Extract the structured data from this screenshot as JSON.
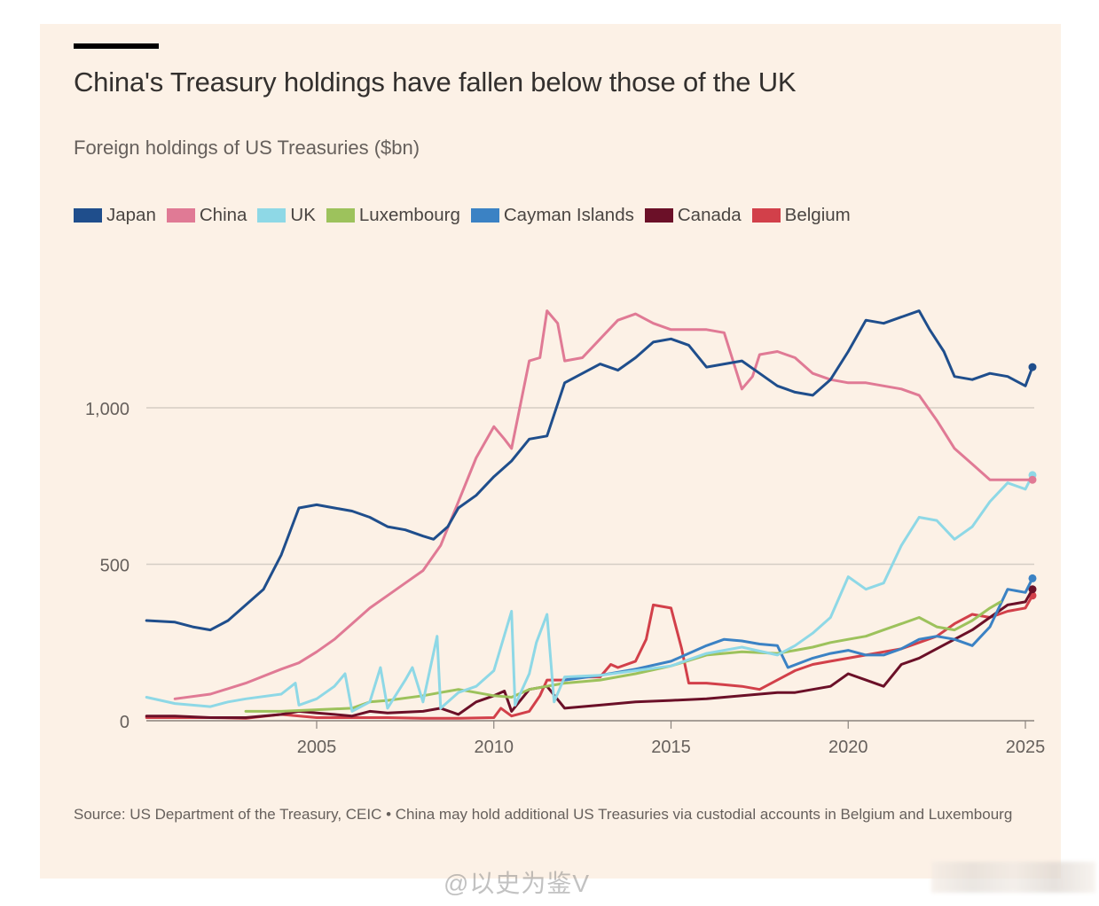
{
  "header": {
    "title": "China's Treasury holdings have fallen below those of the UK",
    "subtitle": "Foreign holdings of US Treasuries ($bn)"
  },
  "legend": [
    {
      "name": "Japan",
      "color": "#1f4e8c"
    },
    {
      "name": "China",
      "color": "#e07a95"
    },
    {
      "name": "UK",
      "color": "#8ed8e6"
    },
    {
      "name": "Luxembourg",
      "color": "#9dc25c"
    },
    {
      "name": "Cayman Islands",
      "color": "#3b82c4"
    },
    {
      "name": "Canada",
      "color": "#6b1028"
    },
    {
      "name": "Belgium",
      "color": "#d2404a"
    }
  ],
  "footer": {
    "source": "Source: US Department of the Treasury, CEIC • China may hold additional US Treasuries via custodial accounts in Belgium and Luxembourg",
    "watermark": "@以史为鉴V"
  },
  "chart_data": {
    "type": "line",
    "title": "China's Treasury holdings have fallen below those of the UK",
    "subtitle": "Foreign holdings of US Treasuries ($bn)",
    "xlabel": "",
    "ylabel": "$bn",
    "xlim": [
      2000.2,
      2025.3
    ],
    "ylim": [
      0,
      1400
    ],
    "xticks": [
      2005,
      2010,
      2015,
      2020,
      2025
    ],
    "xtick_labels": [
      "2005",
      "2010",
      "2015",
      "2020",
      "2025"
    ],
    "yticks": [
      0,
      500,
      1000
    ],
    "ytick_labels": [
      "0",
      "500",
      "1,000"
    ],
    "grid": "horizontal",
    "legend_position": "top-left",
    "series": [
      {
        "name": "Japan",
        "color": "#1f4e8c",
        "x": [
          2000.2,
          2001,
          2001.5,
          2002,
          2002.5,
          2003,
          2003.5,
          2004,
          2004.5,
          2005,
          2005.5,
          2006,
          2006.5,
          2007,
          2007.5,
          2008,
          2008.3,
          2008.7,
          2009,
          2009.5,
          2010,
          2010.5,
          2011,
          2011.5,
          2012,
          2012.5,
          2013,
          2013.5,
          2014,
          2014.5,
          2015,
          2015.5,
          2016,
          2016.5,
          2017,
          2017.5,
          2018,
          2018.5,
          2019,
          2019.5,
          2020,
          2020.5,
          2021,
          2021.5,
          2022,
          2022.3,
          2022.7,
          2023,
          2023.5,
          2024,
          2024.5,
          2025,
          2025.2
        ],
        "y": [
          320,
          315,
          300,
          290,
          320,
          370,
          420,
          530,
          680,
          690,
          680,
          670,
          650,
          620,
          610,
          590,
          580,
          620,
          680,
          720,
          780,
          830,
          900,
          910,
          1080,
          1110,
          1140,
          1120,
          1160,
          1210,
          1220,
          1200,
          1130,
          1140,
          1150,
          1110,
          1070,
          1050,
          1040,
          1090,
          1180,
          1280,
          1270,
          1290,
          1310,
          1250,
          1180,
          1100,
          1090,
          1110,
          1100,
          1070,
          1130
        ]
      },
      {
        "name": "China",
        "color": "#e07a95",
        "x": [
          2001,
          2002,
          2003,
          2004,
          2004.5,
          2005,
          2005.5,
          2006,
          2006.5,
          2007,
          2007.5,
          2008,
          2008.5,
          2009,
          2009.5,
          2010,
          2010.3,
          2010.5,
          2011,
          2011.3,
          2011.5,
          2011.8,
          2012,
          2012.5,
          2013,
          2013.5,
          2014,
          2014.5,
          2015,
          2015.5,
          2016,
          2016.5,
          2017,
          2017.3,
          2017.5,
          2018,
          2018.5,
          2019,
          2019.5,
          2020,
          2020.5,
          2021,
          2021.5,
          2022,
          2022.5,
          2023,
          2023.5,
          2024,
          2024.5,
          2025,
          2025.2
        ],
        "y": [
          70,
          85,
          120,
          165,
          185,
          220,
          260,
          310,
          360,
          400,
          440,
          480,
          560,
          700,
          840,
          940,
          900,
          870,
          1150,
          1160,
          1310,
          1270,
          1150,
          1160,
          1220,
          1280,
          1300,
          1270,
          1250,
          1250,
          1250,
          1240,
          1060,
          1100,
          1170,
          1180,
          1160,
          1110,
          1090,
          1080,
          1080,
          1070,
          1060,
          1040,
          960,
          870,
          820,
          770,
          770,
          770,
          770
        ]
      },
      {
        "name": "UK",
        "color": "#8ed8e6",
        "x": [
          2000.2,
          2001,
          2002,
          2002.5,
          2003,
          2004,
          2004.4,
          2004.5,
          2005,
          2005.5,
          2005.8,
          2006,
          2006.5,
          2006.8,
          2007,
          2007.5,
          2007.7,
          2008,
          2008.4,
          2008.5,
          2009,
          2009.5,
          2010,
          2010.5,
          2010.6,
          2011,
          2011.2,
          2011.5,
          2011.7,
          2012,
          2013,
          2014,
          2015,
          2016,
          2017,
          2018,
          2018.5,
          2019,
          2019.5,
          2020,
          2020.5,
          2021,
          2021.5,
          2022,
          2022.5,
          2023,
          2023.5,
          2024,
          2024.5,
          2025,
          2025.2
        ],
        "y": [
          75,
          55,
          45,
          60,
          70,
          85,
          120,
          50,
          70,
          110,
          150,
          30,
          60,
          170,
          40,
          130,
          170,
          60,
          270,
          40,
          90,
          110,
          160,
          350,
          50,
          150,
          250,
          340,
          60,
          140,
          145,
          160,
          175,
          215,
          235,
          210,
          240,
          280,
          330,
          460,
          420,
          440,
          560,
          650,
          640,
          580,
          620,
          700,
          760,
          740,
          785
        ]
      },
      {
        "name": "Luxembourg",
        "color": "#9dc25c",
        "x": [
          2003,
          2004,
          2005,
          2006,
          2006.5,
          2007,
          2008,
          2008.5,
          2009,
          2009.5,
          2010,
          2010.5,
          2011,
          2012,
          2013,
          2014,
          2015,
          2016,
          2017,
          2018,
          2018.5,
          2019,
          2019.5,
          2020,
          2020.5,
          2021,
          2021.5,
          2022,
          2022.5,
          2023,
          2023.5,
          2024,
          2024.3
        ],
        "y": [
          30,
          30,
          35,
          40,
          60,
          65,
          80,
          90,
          100,
          90,
          80,
          75,
          100,
          120,
          130,
          150,
          175,
          210,
          220,
          215,
          225,
          235,
          250,
          260,
          270,
          290,
          310,
          330,
          300,
          290,
          320,
          360,
          380
        ]
      },
      {
        "name": "Cayman Islands",
        "color": "#3b82c4",
        "x": [
          2012,
          2013,
          2014,
          2015,
          2016,
          2016.5,
          2017,
          2017.5,
          2018,
          2018.3,
          2019,
          2019.5,
          2020,
          2020.5,
          2021,
          2021.5,
          2022,
          2022.5,
          2023,
          2023.5,
          2024,
          2024.5,
          2025,
          2025.2
        ],
        "y": [
          130,
          145,
          165,
          190,
          240,
          260,
          255,
          245,
          240,
          170,
          200,
          215,
          225,
          210,
          210,
          230,
          260,
          270,
          260,
          240,
          300,
          420,
          410,
          455
        ]
      },
      {
        "name": "Canada",
        "color": "#6b1028",
        "x": [
          2000.2,
          2001,
          2002,
          2003,
          2004,
          2004.5,
          2005,
          2005.5,
          2006,
          2006.5,
          2007,
          2008,
          2008.5,
          2009,
          2009.5,
          2010,
          2010.3,
          2010.5,
          2011,
          2011.5,
          2012,
          2013,
          2014,
          2015,
          2016,
          2017,
          2018,
          2018.5,
          2019,
          2019.5,
          2020,
          2020.5,
          2021,
          2021.5,
          2022,
          2022.5,
          2023,
          2023.5,
          2024,
          2024.5,
          2025,
          2025.2
        ],
        "y": [
          15,
          15,
          10,
          10,
          20,
          30,
          25,
          20,
          15,
          30,
          25,
          30,
          40,
          20,
          60,
          80,
          95,
          30,
          100,
          110,
          40,
          50,
          60,
          65,
          70,
          80,
          90,
          90,
          100,
          110,
          150,
          130,
          110,
          180,
          200,
          230,
          260,
          290,
          330,
          370,
          380,
          420
        ]
      },
      {
        "name": "Belgium",
        "color": "#d2404a",
        "x": [
          2000.2,
          2002,
          2003,
          2004,
          2005,
          2006,
          2007,
          2008,
          2009,
          2010,
          2010.2,
          2010.5,
          2011,
          2011.3,
          2011.5,
          2012,
          2012.5,
          2013,
          2013.3,
          2013.5,
          2014,
          2014.3,
          2014.5,
          2015,
          2015.3,
          2015.5,
          2016,
          2016.5,
          2017,
          2017.5,
          2018,
          2018.5,
          2019,
          2019.5,
          2020,
          2020.5,
          2021,
          2021.5,
          2022,
          2022.5,
          2023,
          2023.5,
          2024,
          2024.5,
          2025,
          2025.2
        ],
        "y": [
          10,
          10,
          8,
          20,
          10,
          10,
          10,
          8,
          8,
          10,
          40,
          15,
          30,
          80,
          130,
          130,
          140,
          140,
          180,
          170,
          190,
          260,
          370,
          360,
          230,
          120,
          120,
          115,
          110,
          100,
          130,
          160,
          180,
          190,
          200,
          210,
          220,
          230,
          250,
          270,
          310,
          340,
          330,
          350,
          360,
          400
        ]
      }
    ]
  }
}
